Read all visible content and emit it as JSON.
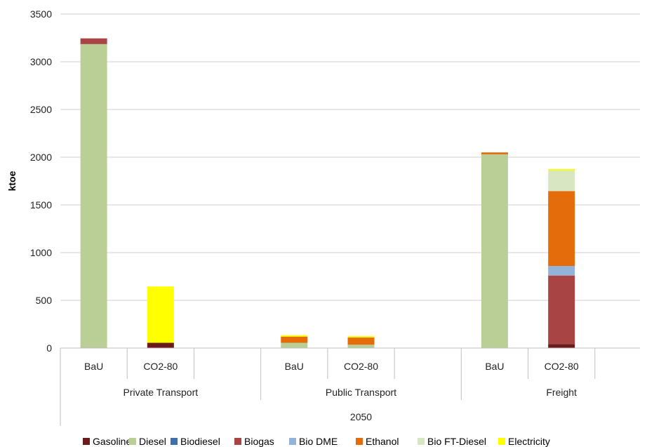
{
  "chart_data": {
    "type": "bar",
    "stacked": true,
    "ylabel": "ktoe",
    "xlabel": "",
    "ylim": [
      0,
      3500
    ],
    "yticks": [
      0,
      500,
      1000,
      1500,
      2000,
      2500,
      3000,
      3500
    ],
    "grid": true,
    "legend_position": "bottom",
    "top_group": "2050",
    "groups": [
      {
        "label": "Private Transport",
        "categories": [
          "BaU",
          "CO2-80",
          ""
        ]
      },
      {
        "label": "Public Transport",
        "categories": [
          "BaU",
          "CO2-80",
          ""
        ]
      },
      {
        "label": "Freight",
        "categories": [
          "BaU",
          "CO2-80",
          ""
        ]
      }
    ],
    "categories": [
      "BaU",
      "CO2-80",
      "",
      "BaU",
      "CO2-80",
      "",
      "BaU",
      "CO2-80",
      ""
    ],
    "series": [
      {
        "name": "Gasoline",
        "color": "#6B1B1B",
        "values": [
          5,
          55,
          0,
          0,
          0,
          0,
          0,
          40,
          0
        ]
      },
      {
        "name": "Diesel",
        "color": "#BACF96",
        "values": [
          3180,
          0,
          0,
          55,
          35,
          0,
          2030,
          0,
          0
        ]
      },
      {
        "name": "Biodiesel",
        "color": "#3E6FA8",
        "values": [
          0,
          0,
          0,
          0,
          0,
          0,
          0,
          0,
          0
        ]
      },
      {
        "name": "Biogas",
        "color": "#A84444",
        "values": [
          60,
          0,
          0,
          0,
          0,
          0,
          0,
          720,
          0
        ]
      },
      {
        "name": "Bio DME",
        "color": "#94B3D8",
        "values": [
          0,
          0,
          0,
          0,
          0,
          0,
          0,
          100,
          0
        ]
      },
      {
        "name": "Ethanol",
        "color": "#E46C0A",
        "values": [
          0,
          0,
          0,
          65,
          75,
          0,
          20,
          785,
          0
        ]
      },
      {
        "name": "Bio FT-Diesel",
        "color": "#D9E6C2",
        "values": [
          0,
          0,
          0,
          0,
          0,
          0,
          0,
          215,
          0
        ]
      },
      {
        "name": "Electricity",
        "color": "#FFFF00",
        "values": [
          0,
          590,
          0,
          15,
          15,
          0,
          0,
          15,
          0
        ]
      }
    ]
  }
}
